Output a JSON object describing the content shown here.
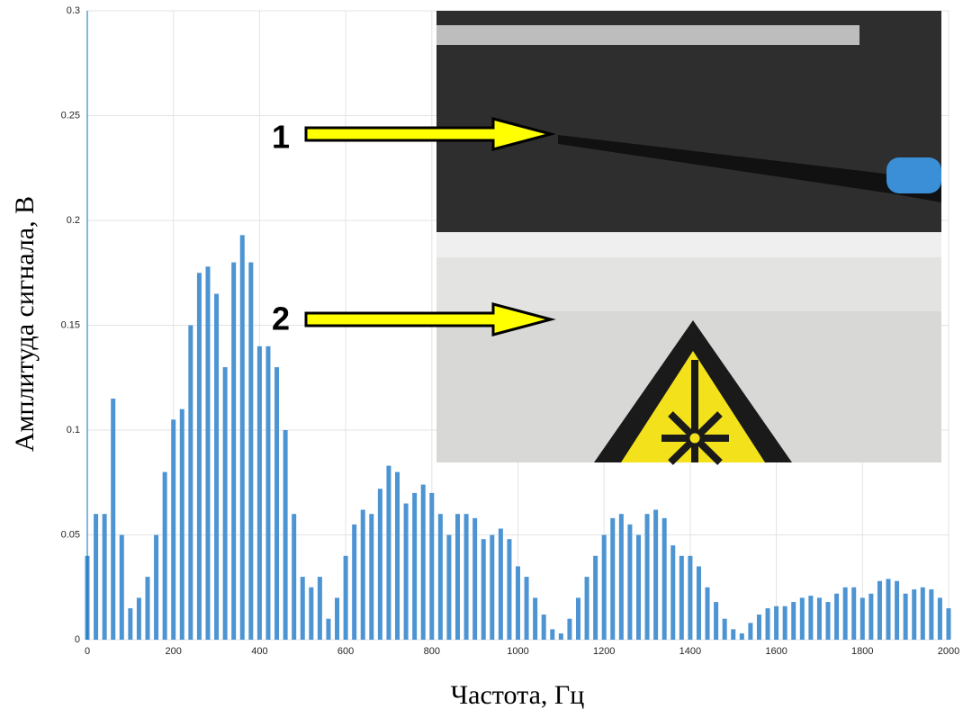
{
  "chart_data": {
    "type": "bar",
    "xlabel": "Частота, Гц",
    "ylabel": "Амплитуда сигнала, В",
    "annotations": [
      "1",
      "2"
    ],
    "color": "#4d94d3",
    "x": [
      0,
      20,
      40,
      60,
      80,
      100,
      120,
      140,
      160,
      180,
      200,
      220,
      240,
      260,
      280,
      300,
      320,
      340,
      360,
      380,
      400,
      420,
      440,
      460,
      480,
      500,
      520,
      540,
      560,
      580,
      600,
      620,
      640,
      660,
      680,
      700,
      720,
      740,
      760,
      780,
      800,
      820,
      840,
      860,
      880,
      900,
      920,
      940,
      960,
      980,
      1000,
      1020,
      1040,
      1060,
      1080,
      1100,
      1120,
      1140,
      1160,
      1180,
      1200,
      1220,
      1240,
      1260,
      1280,
      1300,
      1320,
      1340,
      1360,
      1380,
      1400,
      1420,
      1440,
      1460,
      1480,
      1500,
      1520,
      1540,
      1560,
      1580,
      1600,
      1620,
      1640,
      1660,
      1680,
      1700,
      1720,
      1740,
      1760,
      1780,
      1800,
      1820,
      1840,
      1860,
      1880,
      1900,
      1920,
      1940,
      1960,
      1980,
      2000
    ],
    "values": [
      0.04,
      0.06,
      0.06,
      0.115,
      0.05,
      0.015,
      0.02,
      0.03,
      0.05,
      0.08,
      0.105,
      0.11,
      0.15,
      0.175,
      0.178,
      0.165,
      0.13,
      0.18,
      0.193,
      0.18,
      0.14,
      0.14,
      0.13,
      0.1,
      0.06,
      0.03,
      0.025,
      0.03,
      0.01,
      0.02,
      0.04,
      0.055,
      0.062,
      0.06,
      0.072,
      0.083,
      0.08,
      0.065,
      0.07,
      0.074,
      0.07,
      0.06,
      0.05,
      0.06,
      0.06,
      0.058,
      0.048,
      0.05,
      0.053,
      0.048,
      0.035,
      0.03,
      0.02,
      0.012,
      0.005,
      0.003,
      0.01,
      0.02,
      0.03,
      0.04,
      0.05,
      0.058,
      0.06,
      0.055,
      0.05,
      0.06,
      0.062,
      0.058,
      0.045,
      0.04,
      0.04,
      0.035,
      0.025,
      0.018,
      0.01,
      0.005,
      0.003,
      0.008,
      0.012,
      0.015,
      0.016,
      0.016,
      0.018,
      0.02,
      0.021,
      0.02,
      0.018,
      0.022,
      0.025,
      0.025,
      0.02,
      0.022,
      0.028,
      0.029,
      0.028,
      0.022,
      0.024,
      0.025,
      0.024,
      0.02,
      0.015
    ],
    "xlim": [
      0,
      2000
    ],
    "xticks": [
      0,
      200,
      400,
      600,
      800,
      1000,
      1200,
      1400,
      1600,
      1800,
      2000
    ],
    "ylim": [
      0,
      0.3
    ],
    "yticks": [
      0,
      0.05,
      0.1,
      0.15,
      0.2,
      0.25,
      0.3
    ],
    "grid": true
  }
}
